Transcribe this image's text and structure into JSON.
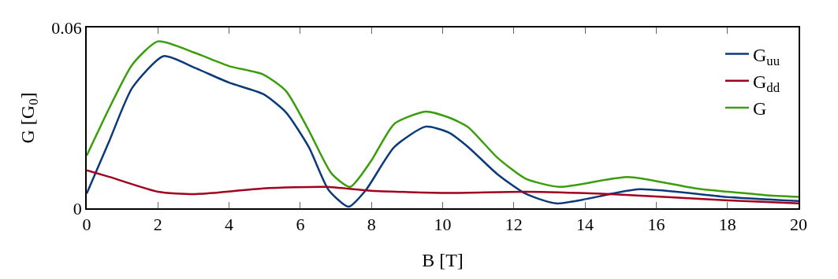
{
  "chart_data": {
    "type": "line",
    "xlabel": "B [T]",
    "ylabel": "G [G$_{0}$]",
    "xlim": [
      0,
      20
    ],
    "ylim": [
      0,
      0.06
    ],
    "xticks": [
      0,
      2,
      4,
      6,
      8,
      10,
      12,
      14,
      16,
      18,
      20
    ],
    "yticks": [
      0,
      0.06
    ],
    "legend": "top right",
    "marker": "none",
    "line_style": "solid",
    "series": [
      {
        "name": "G$_{uu}$",
        "color": "#0a3a7a",
        "x": [
          0,
          0.64,
          1.28,
          2.16,
          3.04,
          4,
          4.96,
          5.6,
          6.24,
          6.8,
          7.36,
          7.84,
          8.64,
          9.52,
          10.16,
          10.72,
          11.52,
          12.32,
          13.2,
          15.52,
          17.92,
          20
        ],
        "values": [
          0.0049,
          0.0225,
          0.04,
          0.0505,
          0.0466,
          0.0417,
          0.0379,
          0.0318,
          0.0203,
          0.006,
          0.0005,
          0.006,
          0.0203,
          0.0271,
          0.0252,
          0.0203,
          0.0115,
          0.0049,
          0.0016,
          0.0063,
          0.0038,
          0.0024
        ]
      },
      {
        "name": "G$_{dd}$",
        "color": "#a0001e",
        "x": [
          0,
          0.64,
          2,
          3.04,
          4.96,
          6.72,
          8,
          10.16,
          12.32,
          14.72,
          17.92,
          20
        ],
        "values": [
          0.0126,
          0.0104,
          0.0055,
          0.0047,
          0.0066,
          0.0071,
          0.0058,
          0.0051,
          0.0055,
          0.0047,
          0.0027,
          0.0016
        ]
      },
      {
        "name": "G",
        "color": "#3a9e0a",
        "x": [
          0,
          0.64,
          1.28,
          2,
          3.04,
          4,
          4.96,
          5.6,
          6.24,
          6.88,
          7.4,
          8,
          8.64,
          9.52,
          10.16,
          10.72,
          11.52,
          12.32,
          13.28,
          15.2,
          17.12,
          19.04,
          20
        ],
        "values": [
          0.0175,
          0.0334,
          0.0477,
          0.0554,
          0.0516,
          0.0472,
          0.0444,
          0.0389,
          0.0258,
          0.0115,
          0.0071,
          0.0159,
          0.028,
          0.0321,
          0.0302,
          0.0269,
          0.017,
          0.0099,
          0.0071,
          0.0104,
          0.0066,
          0.0044,
          0.0038
        ]
      }
    ]
  }
}
